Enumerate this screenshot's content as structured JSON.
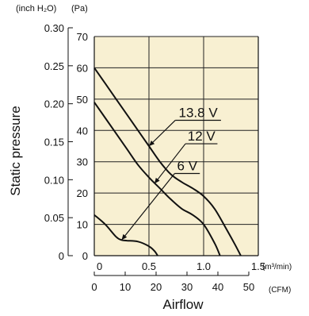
{
  "chart_data": {
    "type": "line",
    "title": "",
    "xlabel": "Airflow",
    "ylabel": "Static pressure",
    "units": {
      "y_left_outer": "(inch H₂O)",
      "y_left_inner": "(Pa)",
      "x_top": "(m³/min)",
      "x_bottom": "(CFM)"
    },
    "grid": true,
    "plot_background": "#f8f0d2",
    "x_m3_min": {
      "ylim_note": "primary x axis",
      "xlim": [
        0,
        1.5
      ],
      "ticks": [
        {
          "value": 0,
          "label": "0"
        },
        {
          "value": 0.5,
          "label": "0.5"
        },
        {
          "value": 1.0,
          "label": "1.0"
        },
        {
          "value": 1.5,
          "label": "1.5"
        }
      ]
    },
    "x_cfm": {
      "ticks": [
        {
          "value": 0,
          "label": "0"
        },
        {
          "value": 10,
          "label": "10"
        },
        {
          "value": 20,
          "label": "20"
        },
        {
          "value": 30,
          "label": "30"
        },
        {
          "value": 40,
          "label": "40"
        },
        {
          "value": 50,
          "label": "50"
        }
      ]
    },
    "y_pa": {
      "ylim": [
        0,
        70
      ],
      "ticks": [
        {
          "value": 0,
          "label": "0"
        },
        {
          "value": 10,
          "label": "10"
        },
        {
          "value": 20,
          "label": "20"
        },
        {
          "value": 30,
          "label": "30"
        },
        {
          "value": 40,
          "label": "40"
        },
        {
          "value": 50,
          "label": "50"
        },
        {
          "value": 60,
          "label": "60"
        },
        {
          "value": 70,
          "label": "70"
        }
      ]
    },
    "y_inch": {
      "ticks": [
        {
          "value": 0,
          "label": "0"
        },
        {
          "value": 0.05,
          "label": "0.05"
        },
        {
          "value": 0.1,
          "label": "0.10"
        },
        {
          "value": 0.15,
          "label": "0.15"
        },
        {
          "value": 0.2,
          "label": "0.20"
        },
        {
          "value": 0.25,
          "label": "0.25"
        },
        {
          "value": 0.3,
          "label": "0.30"
        }
      ]
    },
    "series": [
      {
        "name": "13.8 V",
        "points": [
          [
            0,
            60
          ],
          [
            0.1,
            55
          ],
          [
            0.2,
            50
          ],
          [
            0.3,
            45
          ],
          [
            0.4,
            40
          ],
          [
            0.5,
            35
          ],
          [
            0.6,
            30
          ],
          [
            0.7,
            26
          ],
          [
            0.8,
            23.5
          ],
          [
            0.9,
            21.5
          ],
          [
            1.0,
            19
          ],
          [
            1.1,
            15
          ],
          [
            1.2,
            9
          ],
          [
            1.28,
            4
          ],
          [
            1.34,
            0
          ]
        ]
      },
      {
        "name": "12 V",
        "points": [
          [
            0,
            49
          ],
          [
            0.1,
            44
          ],
          [
            0.2,
            39
          ],
          [
            0.3,
            34
          ],
          [
            0.4,
            29
          ],
          [
            0.5,
            25
          ],
          [
            0.6,
            21.5
          ],
          [
            0.7,
            18
          ],
          [
            0.8,
            15
          ],
          [
            0.9,
            13
          ],
          [
            1.0,
            10
          ],
          [
            1.1,
            4
          ],
          [
            1.15,
            0
          ]
        ]
      },
      {
        "name": "6 V",
        "points": [
          [
            0,
            13
          ],
          [
            0.1,
            10
          ],
          [
            0.2,
            6
          ],
          [
            0.25,
            5
          ],
          [
            0.3,
            4.8
          ],
          [
            0.4,
            4.5
          ],
          [
            0.5,
            3
          ],
          [
            0.55,
            1.5
          ],
          [
            0.58,
            0
          ]
        ]
      }
    ],
    "annotations": [
      {
        "series": "13.8 V",
        "text": "13.8 V",
        "at": [
          0.5,
          35
        ],
        "label_at": [
          0.95,
          43.5
        ]
      },
      {
        "series": "12 V",
        "text": "12 V",
        "at": [
          0.55,
          23
        ],
        "label_at": [
          0.98,
          36
        ]
      },
      {
        "series": "6 V",
        "text": "6 V",
        "at": [
          0.25,
          5
        ],
        "label_at": [
          0.85,
          26.5
        ]
      }
    ]
  }
}
